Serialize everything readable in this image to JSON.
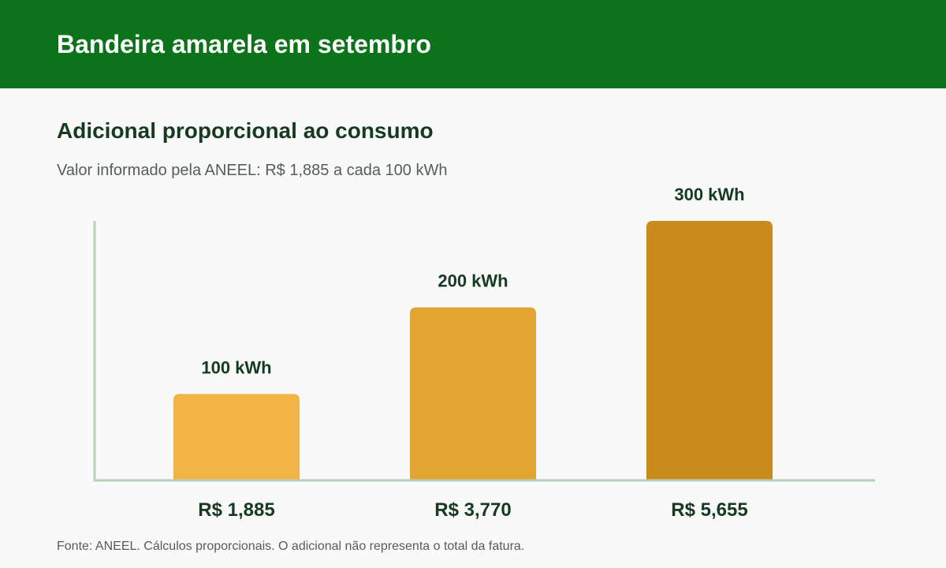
{
  "header": {
    "title": "Bandeira amarela em setembro"
  },
  "section": {
    "title": "Adicional proporcional ao consumo",
    "subtitle": "Valor informado pela ANEEL: R$ 1,885 a cada 100 kWh"
  },
  "chart_data": {
    "type": "bar",
    "categories": [
      "R$ 1,885",
      "R$ 3,770",
      "R$ 5,655"
    ],
    "values": [
      100,
      200,
      300
    ],
    "data_labels": [
      "100 kWh",
      "200 kWh",
      "300 kWh"
    ],
    "ylim": [
      0,
      300
    ],
    "grid": false,
    "colors": [
      "#f2b545",
      "#e3a532",
      "#c98b1a"
    ],
    "axis_color": "#b9d0b9"
  },
  "footnote": "Fonte: ANEEL. Cálculos proporcionais. O adicional não representa o total da fatura."
}
